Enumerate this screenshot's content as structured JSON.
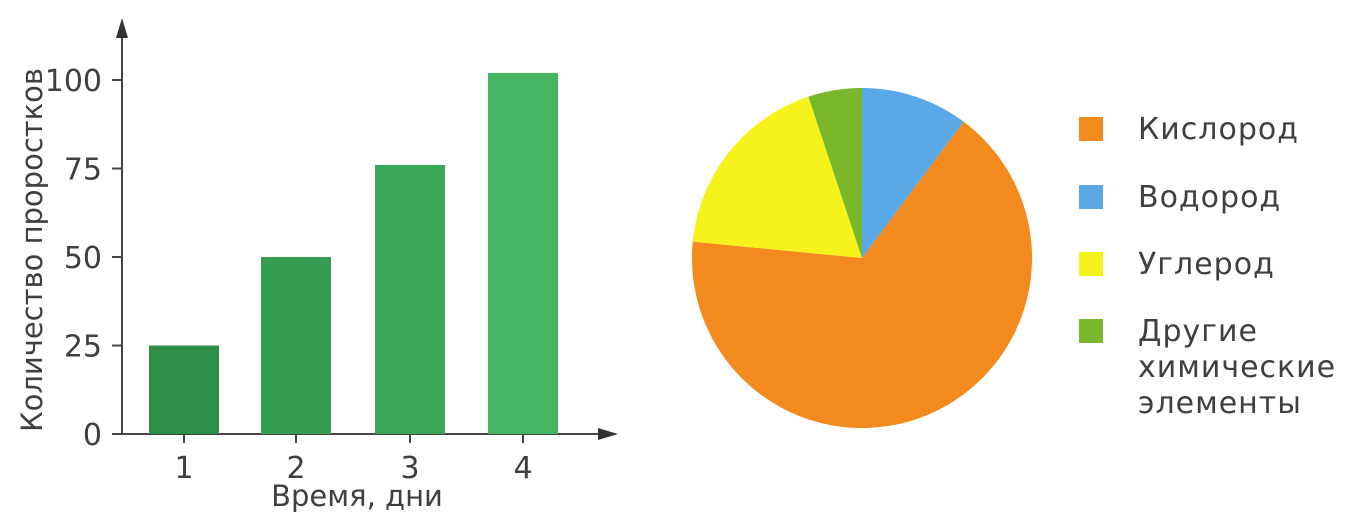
{
  "chart_data": [
    {
      "type": "bar",
      "xlabel": "Время, дни",
      "ylabel": "Количество проростков",
      "categories": [
        "1",
        "2",
        "3",
        "4"
      ],
      "values": [
        25,
        50,
        76,
        102
      ],
      "y_ticks": [
        0,
        25,
        50,
        75,
        100
      ],
      "ylim": [
        0,
        115
      ],
      "grid": false,
      "bar_colors": [
        "#2f8f49",
        "#369c51",
        "#3aa657",
        "#45b563"
      ]
    },
    {
      "type": "pie",
      "legend_position": "right",
      "slices": [
        {
          "label": "Кислород",
          "value": 65,
          "color": "#f28a1e"
        },
        {
          "label": "Водород",
          "value": 10,
          "color": "#5aa9e6"
        },
        {
          "label": "Углерод",
          "value": 18,
          "color": "#f6f21c"
        },
        {
          "label": "Другие химические элементы",
          "value": 5,
          "color": "#78b82a"
        }
      ],
      "legend_lines": [
        [
          "Кислород"
        ],
        [
          "Водород"
        ],
        [
          "Углерод"
        ],
        [
          "Другие",
          "химические",
          "элементы"
        ]
      ]
    }
  ]
}
